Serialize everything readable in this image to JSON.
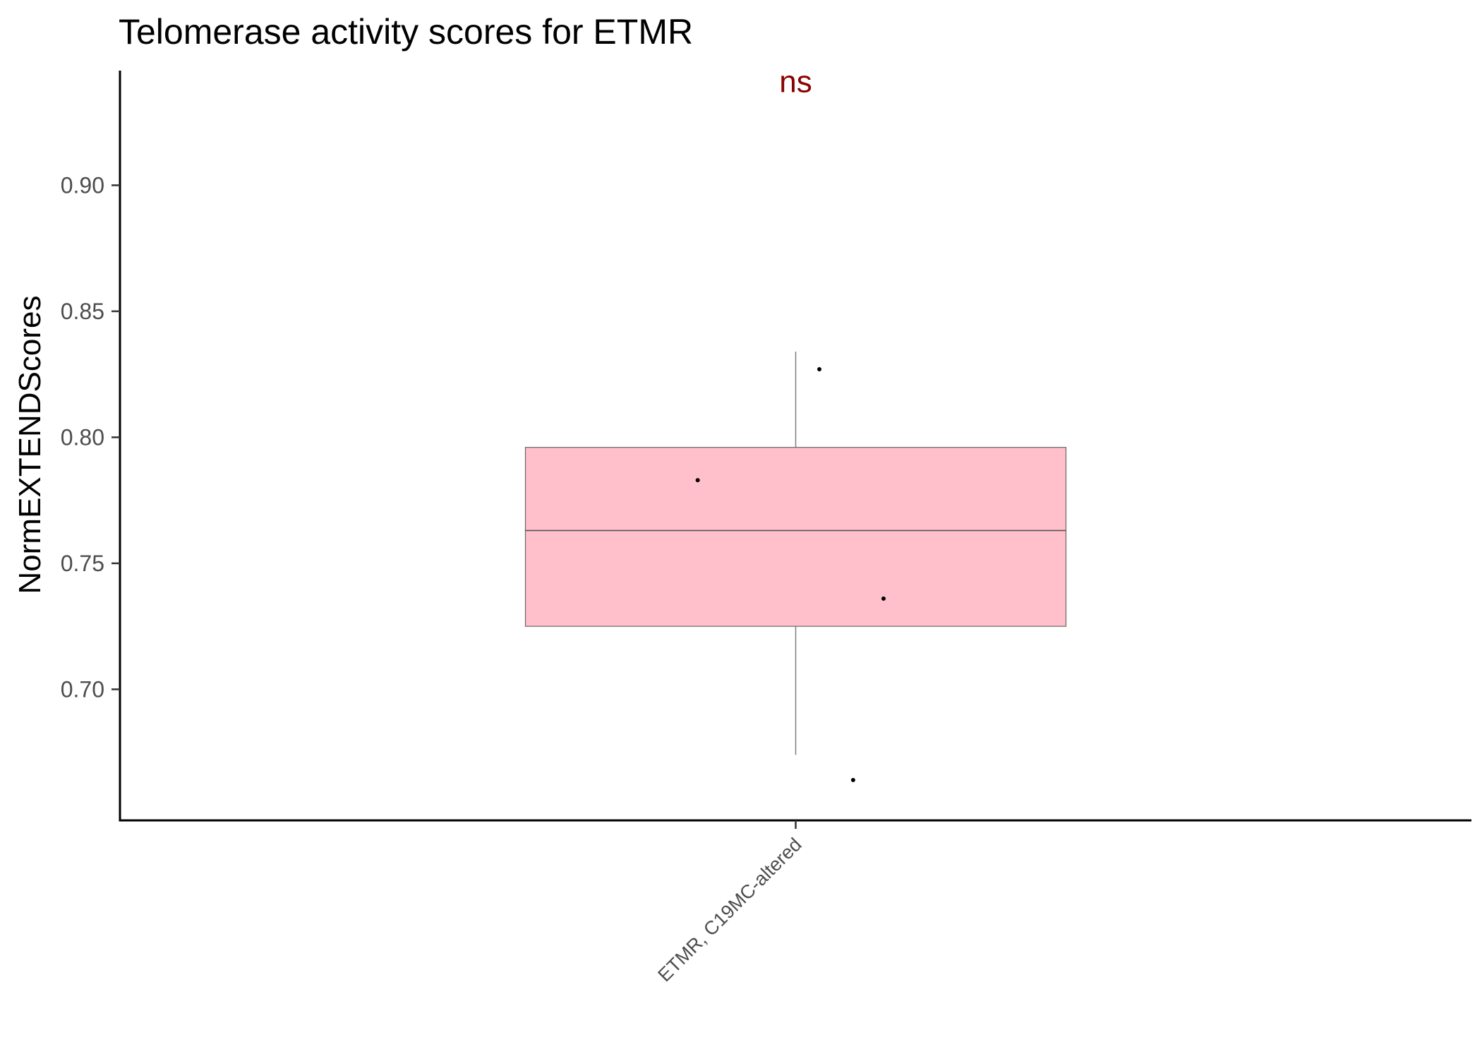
{
  "chart_data": {
    "type": "box",
    "title": "Telomerase activity scores for ETMR",
    "xlabel": "",
    "ylabel": "NormEXTENDScores",
    "ylim": [
      0.648,
      0.9455
    ],
    "yticks": [
      0.7,
      0.75,
      0.8,
      0.85,
      0.9
    ],
    "ytick_labels": [
      "0.70",
      "0.75",
      "0.80",
      "0.85",
      "0.90"
    ],
    "categories": [
      "ETMR, C19MC-altered"
    ],
    "boxes": [
      {
        "category": "ETMR, C19MC-altered",
        "whisker_low": 0.674,
        "q1": 0.725,
        "median": 0.763,
        "q3": 0.796,
        "whisker_high": 0.834,
        "fill": "#ffc0cb"
      }
    ],
    "points": [
      {
        "category": "ETMR, C19MC-altered",
        "y": 0.827,
        "jitter": 0.035
      },
      {
        "category": "ETMR, C19MC-altered",
        "y": 0.783,
        "jitter": -0.145
      },
      {
        "category": "ETMR, C19MC-altered",
        "y": 0.736,
        "jitter": 0.13
      },
      {
        "category": "ETMR, C19MC-altered",
        "y": 0.664,
        "jitter": 0.085
      }
    ],
    "annotation": {
      "text": "ns",
      "y": 0.937,
      "color": "#8b0000"
    },
    "grid": false,
    "legend": "none"
  }
}
